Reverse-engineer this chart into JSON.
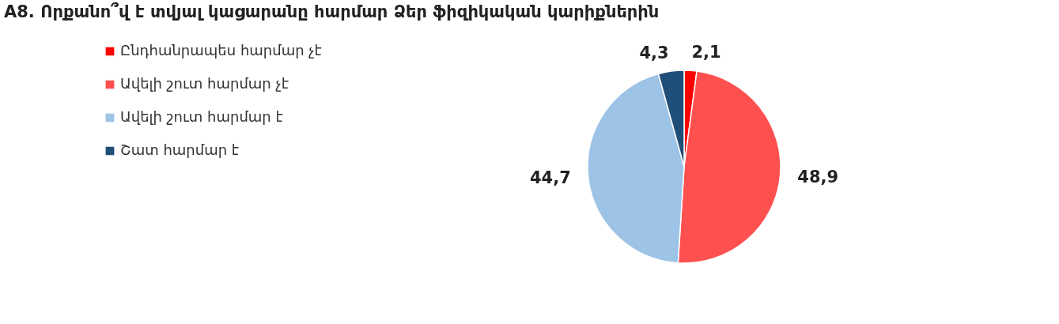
{
  "chart_data": {
    "type": "pie",
    "title": "A8. Որքանո՞վ է տվյալ կացարանը հարմար Ձեր ֆիզիկական կարիքներին",
    "categories": [
      "Ընդհանրապես հարմար չէ",
      "Ավելի շուտ հարմար չէ",
      "Ավելի շուտ հարմար է",
      "Շատ հարմար է"
    ],
    "values": [
      2.1,
      48.9,
      44.7,
      4.3
    ],
    "value_labels": [
      "2,1",
      "48,9",
      "44,7",
      "4,3"
    ],
    "colors": [
      "#ff0000",
      "#ff5050",
      "#9dc3e6",
      "#1f4e79"
    ],
    "legend": "left"
  }
}
